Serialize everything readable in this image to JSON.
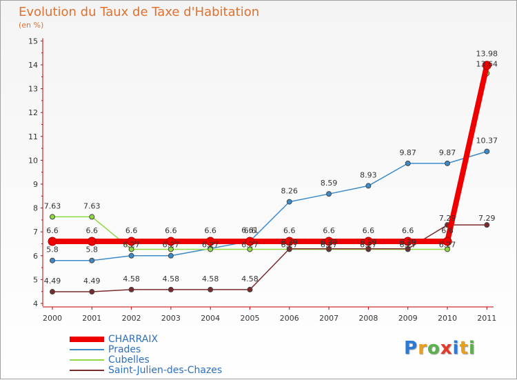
{
  "title": "Evolution du Taux de Taxe d'Habitation",
  "subtitle": "(en %)",
  "logo": {
    "text": "Proxiti",
    "letters": [
      "P",
      "r",
      "o",
      "x",
      "i",
      "t",
      "i"
    ],
    "colors": [
      "#2b7bd6",
      "#e8a01c",
      "#5ab04a",
      "#e23a2a",
      "#2b7bd6",
      "#e8a01c",
      "#5ab04a"
    ]
  },
  "chart_data": {
    "type": "line",
    "x": [
      "2000",
      "2001",
      "2002",
      "2003",
      "2004",
      "2005",
      "2006",
      "2007",
      "2008",
      "2009",
      "2010",
      "2011"
    ],
    "ylim": [
      4,
      15
    ],
    "yticks": [
      "4",
      "5",
      "6",
      "7",
      "8",
      "9",
      "10",
      "11",
      "12",
      "13",
      "14",
      "15"
    ],
    "grid": false,
    "legend_position": "bottom-left",
    "series": [
      {
        "name": "CHARRAIX",
        "color": "#ee0000",
        "values": [
          6.6,
          6.6,
          6.6,
          6.6,
          6.6,
          6.6,
          6.6,
          6.6,
          6.6,
          6.6,
          6.6,
          13.98
        ],
        "labels": [
          "6.6",
          "6.6",
          "6.6",
          "6.6",
          "6.6",
          "6.6",
          "6.6",
          "6.6",
          "6.6",
          "6.6",
          "6.6",
          "13.98"
        ]
      },
      {
        "name": "Prades",
        "color": "#3d8ac9",
        "values": [
          5.8,
          5.8,
          6,
          6,
          6.3,
          6.61,
          8.26,
          8.59,
          8.93,
          9.87,
          9.87,
          10.37
        ],
        "labels": [
          "5.8",
          "5.8",
          "",
          "",
          "",
          "6.61",
          "8.26",
          "8.59",
          "8.93",
          "9.87",
          "9.87",
          "10.37"
        ]
      },
      {
        "name": "Cubelles",
        "color": "#8ed840",
        "values": [
          7.63,
          7.63,
          6.27,
          6.27,
          6.27,
          6.27,
          6.27,
          6.27,
          6.27,
          6.27,
          6.27,
          13.64
        ],
        "labels": [
          "7.63",
          "7.63",
          "6.27",
          "6.27",
          "6.27",
          "6.27",
          "6.27",
          "6.27",
          "6.27",
          "6.27",
          "6.27",
          "13.64"
        ]
      },
      {
        "name": "Saint-Julien-des-Chazes",
        "color": "#7a2a2a",
        "values": [
          4.49,
          4.49,
          4.58,
          4.58,
          4.58,
          4.58,
          6.29,
          6.29,
          6.29,
          6.29,
          7.29,
          7.29
        ],
        "labels": [
          "4.49",
          "4.49",
          "4.58",
          "4.58",
          "4.58",
          "4.58",
          "6.29",
          "6.29",
          "6.29",
          "6.29",
          "7.29",
          "7.29"
        ]
      }
    ]
  }
}
